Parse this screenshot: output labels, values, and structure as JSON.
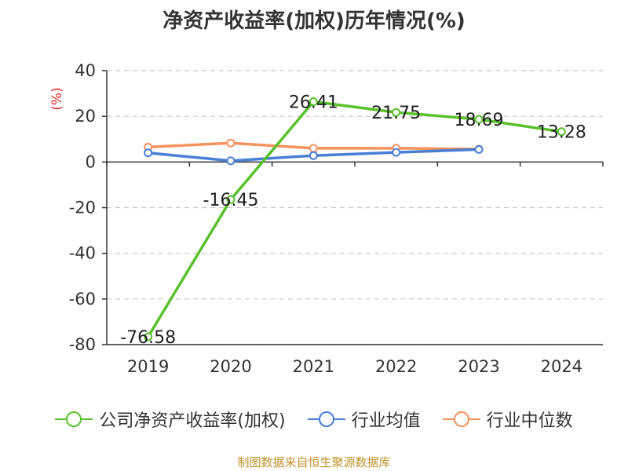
{
  "title": "净资产收益率(加权)历年情况(%)",
  "source": "制图数据来自恒生聚源数据库",
  "chart_data": {
    "type": "line",
    "categories": [
      "2019",
      "2020",
      "2021",
      "2022",
      "2023",
      "2024"
    ],
    "ylabel": "(%)",
    "ylim": [
      -80,
      40
    ],
    "yticks": [
      "40",
      "20",
      "0",
      "-20",
      "-40",
      "-60",
      "-80"
    ],
    "ytick_values": [
      40,
      20,
      0,
      -20,
      -40,
      -60,
      -80
    ],
    "grid": true,
    "legend_position": "bottom",
    "series": [
      {
        "name": "公司净资产收益率(加权)",
        "color": "#5ac12d",
        "values": [
          -76.58,
          -16.45,
          26.41,
          21.75,
          18.69,
          13.28
        ],
        "labels": [
          "-76.58",
          "-16.45",
          "26.41",
          "21.75",
          "18.69",
          "13.28"
        ]
      },
      {
        "name": "行业均值",
        "color": "#4a7fd6",
        "values": [
          4.0,
          0.5,
          2.8,
          4.2,
          5.5,
          null
        ]
      },
      {
        "name": "行业中位数",
        "color": "#f5935f",
        "values": [
          6.5,
          8.3,
          6.0,
          6.0,
          5.6,
          null
        ]
      }
    ]
  }
}
